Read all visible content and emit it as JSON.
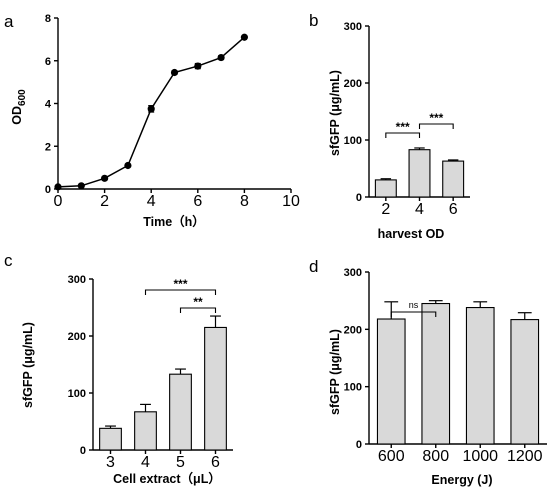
{
  "chart_data": [
    {
      "panel": "a",
      "type": "line",
      "xlabel": "Time（h）",
      "ylabel": "OD",
      "ylabel_sub": "600",
      "xlim": [
        0,
        10
      ],
      "ylim": [
        0,
        8
      ],
      "xticks": [
        0,
        2,
        4,
        6,
        8,
        10
      ],
      "yticks": [
        0,
        2,
        4,
        6,
        8
      ],
      "series": [
        {
          "x": [
            0,
            1,
            2,
            3,
            4,
            5,
            6,
            7,
            8
          ],
          "y": [
            0.1,
            0.15,
            0.5,
            1.1,
            3.75,
            5.45,
            5.75,
            6.15,
            7.1
          ],
          "err": [
            0.03,
            0.03,
            0.05,
            0.05,
            0.15,
            0.08,
            0.12,
            0.08,
            0.05
          ]
        }
      ]
    },
    {
      "panel": "b",
      "type": "bar",
      "xlabel": "harvest OD",
      "ylabel": "sfGFP (μg/mL)",
      "ylim": [
        0,
        300
      ],
      "yticks": [
        0,
        100,
        200,
        300
      ],
      "categories": [
        "2",
        "4",
        "6"
      ],
      "values": [
        30,
        83,
        63
      ],
      "err": [
        2,
        3,
        2
      ],
      "significance": [
        {
          "from": 0,
          "to": 1,
          "label": "***"
        },
        {
          "from": 1,
          "to": 2,
          "label": "***"
        }
      ]
    },
    {
      "panel": "c",
      "type": "bar",
      "xlabel": "Cell extract（μL）",
      "ylabel": "sfGFP (μg/mL)",
      "ylim": [
        0,
        300
      ],
      "yticks": [
        0,
        100,
        200,
        300
      ],
      "categories": [
        "3",
        "4",
        "5",
        "6"
      ],
      "values": [
        38,
        67,
        133,
        215
      ],
      "err": [
        4,
        13,
        9,
        20
      ],
      "significance": [
        {
          "from": 1,
          "to": 3,
          "label": "***"
        },
        {
          "from": 2,
          "to": 3,
          "label": "**"
        }
      ]
    },
    {
      "panel": "d",
      "type": "bar",
      "xlabel": "Energy (J)",
      "ylabel": "sfGFP (μg/mL)",
      "ylim": [
        0,
        300
      ],
      "yticks": [
        0,
        100,
        200,
        300
      ],
      "categories": [
        "600",
        "800",
        "1000",
        "1200"
      ],
      "values": [
        218,
        245,
        238,
        217
      ],
      "err": [
        30,
        5,
        10,
        12
      ],
      "significance": [
        {
          "from": 0,
          "to": 1,
          "label": "ns"
        }
      ]
    }
  ],
  "colors": {
    "bar_fill": "#d9d9d9",
    "stroke": "#000000"
  }
}
